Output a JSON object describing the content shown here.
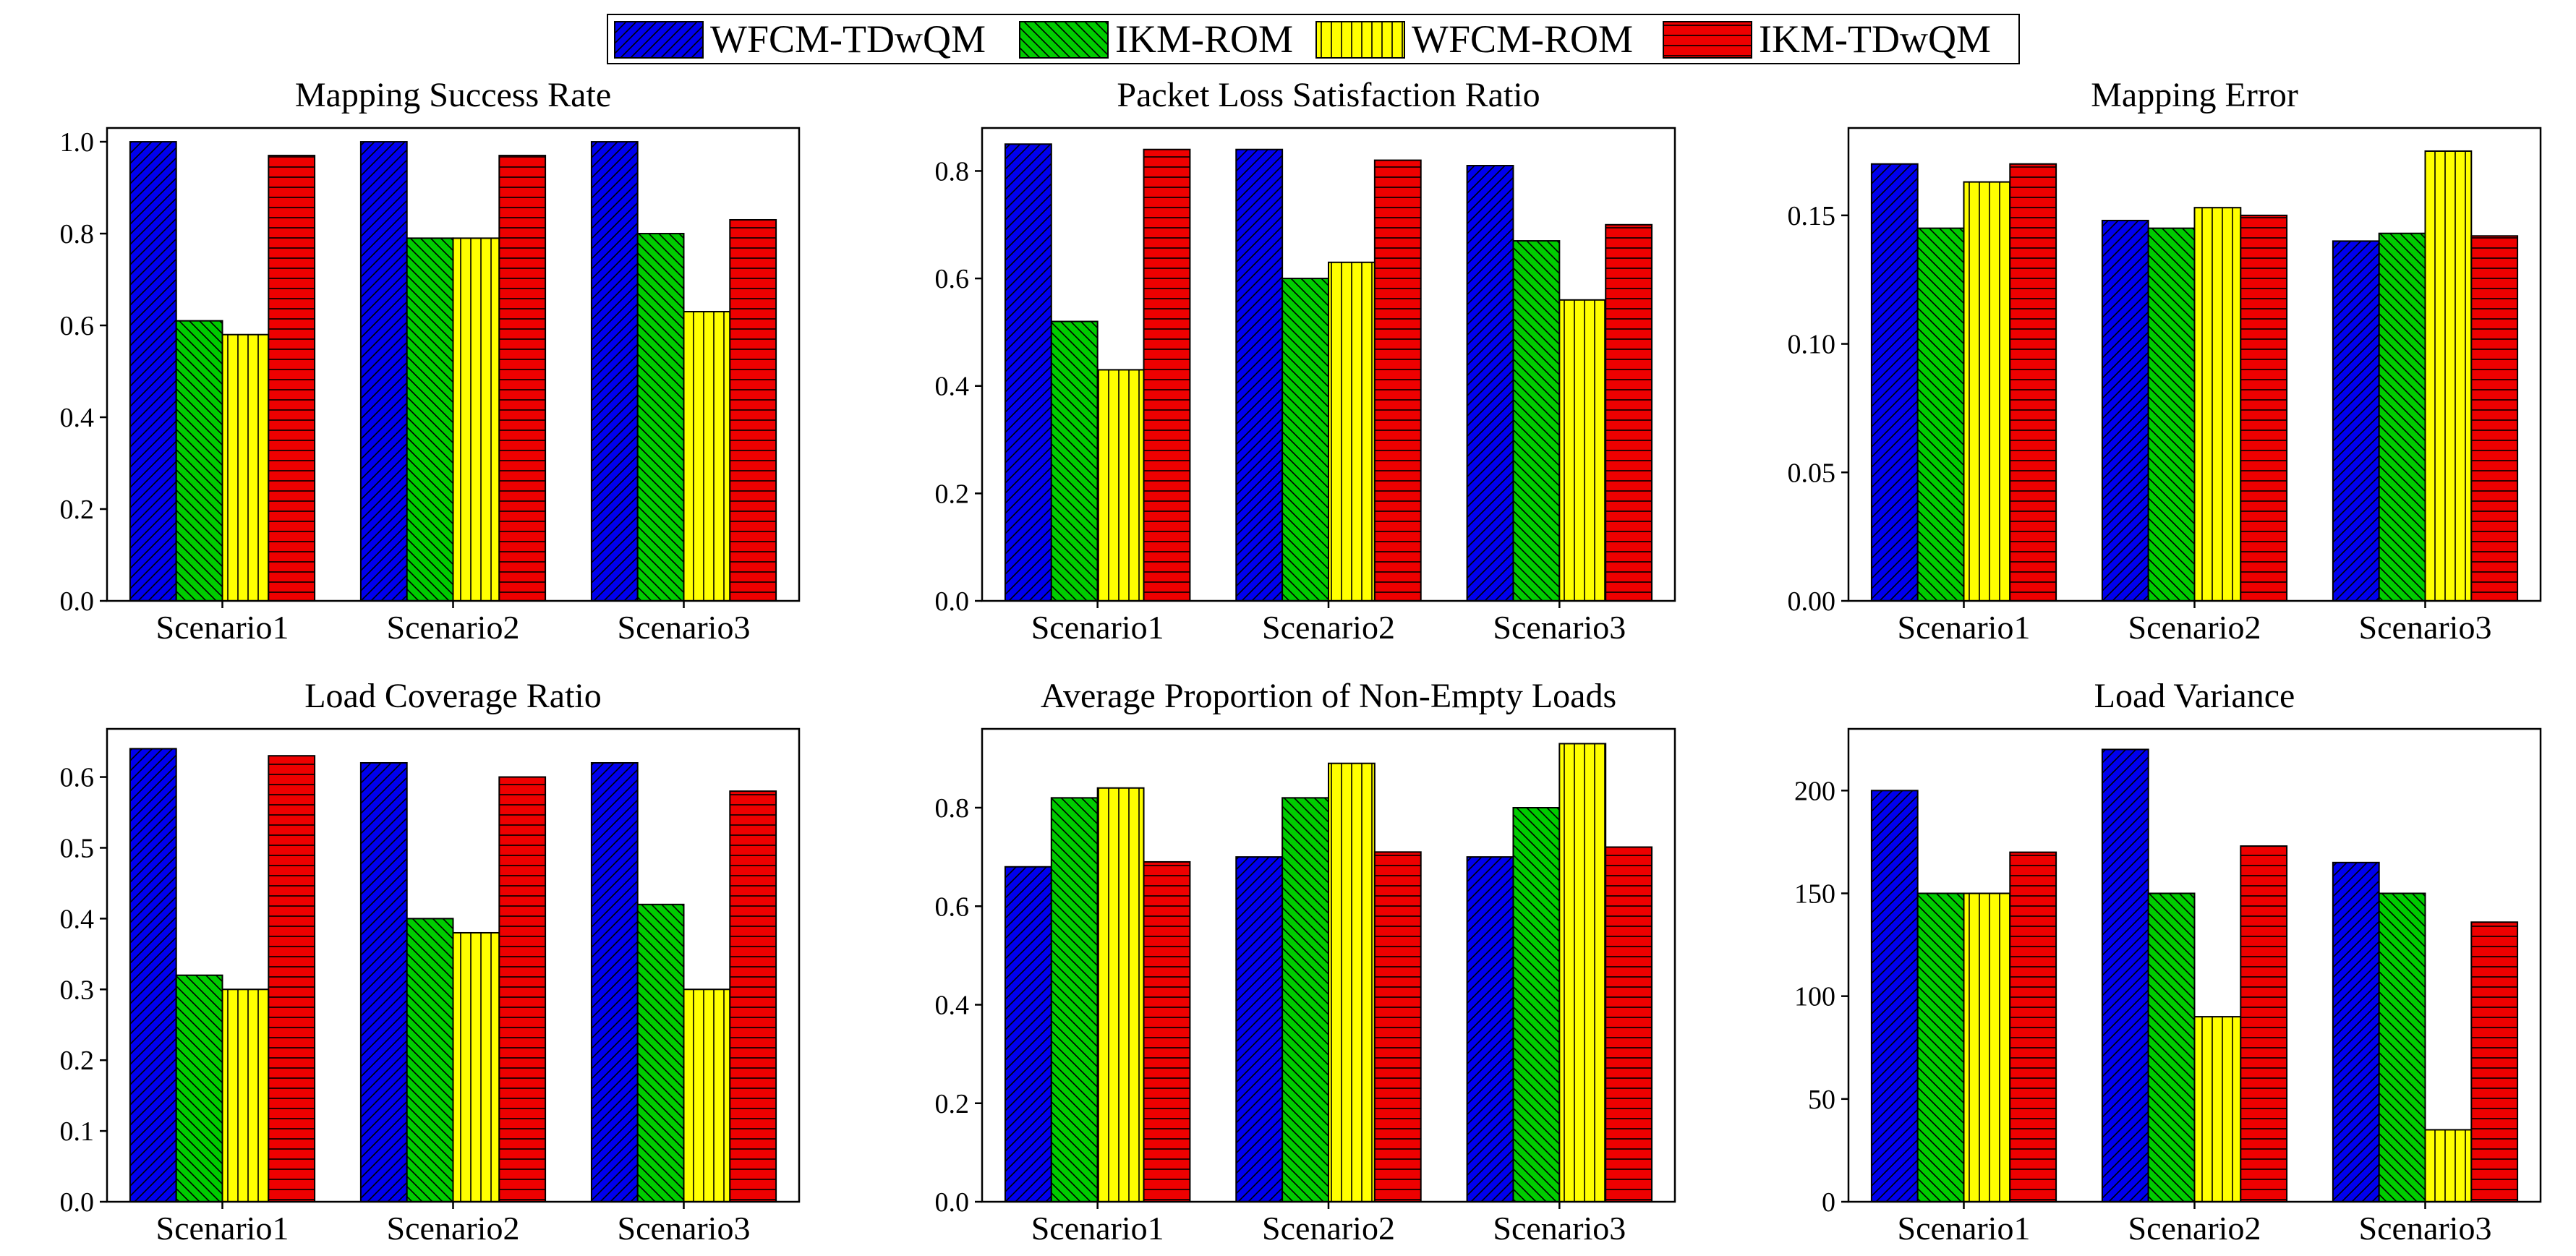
{
  "legend": [
    {
      "name": "WFCM-TDwQM",
      "color": "#0000ee",
      "pattern": "diag"
    },
    {
      "name": "IKM-ROM",
      "color": "#00cc00",
      "pattern": "backdiag"
    },
    {
      "name": "WFCM-ROM",
      "color": "#ffff00",
      "pattern": "vert"
    },
    {
      "name": "IKM-TDwQM",
      "color": "#ee0000",
      "pattern": "horiz"
    }
  ],
  "chart_data": [
    {
      "type": "bar",
      "title": "Mapping Success Rate",
      "categories": [
        "Scenario1",
        "Scenario2",
        "Scenario3"
      ],
      "ylim": [
        0,
        1.03
      ],
      "yticks": [
        "0.0",
        "0.2",
        "0.4",
        "0.6",
        "0.8",
        "1.0"
      ],
      "series": [
        {
          "name": "WFCM-TDwQM",
          "values": [
            1.0,
            1.0,
            1.0
          ]
        },
        {
          "name": "IKM-ROM",
          "values": [
            0.61,
            0.79,
            0.8
          ]
        },
        {
          "name": "WFCM-ROM",
          "values": [
            0.58,
            0.79,
            0.63
          ]
        },
        {
          "name": "IKM-TDwQM",
          "values": [
            0.97,
            0.97,
            0.83
          ]
        }
      ]
    },
    {
      "type": "bar",
      "title": "Packet Loss Satisfaction Ratio",
      "categories": [
        "Scenario1",
        "Scenario2",
        "Scenario3"
      ],
      "ylim": [
        0,
        0.88
      ],
      "yticks": [
        "0.0",
        "0.2",
        "0.4",
        "0.6",
        "0.8"
      ],
      "series": [
        {
          "name": "WFCM-TDwQM",
          "values": [
            0.85,
            0.84,
            0.81
          ]
        },
        {
          "name": "IKM-ROM",
          "values": [
            0.52,
            0.6,
            0.67
          ]
        },
        {
          "name": "WFCM-ROM",
          "values": [
            0.43,
            0.63,
            0.56
          ]
        },
        {
          "name": "IKM-TDwQM",
          "values": [
            0.84,
            0.82,
            0.7
          ]
        }
      ]
    },
    {
      "type": "bar",
      "title": "Mapping Error",
      "categories": [
        "Scenario1",
        "Scenario2",
        "Scenario3"
      ],
      "ylim": [
        0,
        0.184
      ],
      "yticks": [
        "0.00",
        "0.05",
        "0.10",
        "0.15"
      ],
      "series": [
        {
          "name": "WFCM-TDwQM",
          "values": [
            0.17,
            0.148,
            0.14
          ]
        },
        {
          "name": "IKM-ROM",
          "values": [
            0.145,
            0.145,
            0.143
          ]
        },
        {
          "name": "WFCM-ROM",
          "values": [
            0.163,
            0.153,
            0.175
          ]
        },
        {
          "name": "IKM-TDwQM",
          "values": [
            0.17,
            0.15,
            0.142
          ]
        }
      ]
    },
    {
      "type": "bar",
      "title": "Load Coverage Ratio",
      "categories": [
        "Scenario1",
        "Scenario2",
        "Scenario3"
      ],
      "ylim": [
        0,
        0.668
      ],
      "yticks": [
        "0.0",
        "0.1",
        "0.2",
        "0.3",
        "0.4",
        "0.5",
        "0.6"
      ],
      "series": [
        {
          "name": "WFCM-TDwQM",
          "values": [
            0.64,
            0.62,
            0.62
          ]
        },
        {
          "name": "IKM-ROM",
          "values": [
            0.32,
            0.4,
            0.42
          ]
        },
        {
          "name": "WFCM-ROM",
          "values": [
            0.3,
            0.38,
            0.3
          ]
        },
        {
          "name": "IKM-TDwQM",
          "values": [
            0.63,
            0.6,
            0.58
          ]
        }
      ]
    },
    {
      "type": "bar",
      "title": "Average Proportion of Non-Empty Loads",
      "categories": [
        "Scenario1",
        "Scenario2",
        "Scenario3"
      ],
      "ylim": [
        0,
        0.96
      ],
      "yticks": [
        "0.0",
        "0.2",
        "0.4",
        "0.6",
        "0.8"
      ],
      "series": [
        {
          "name": "WFCM-TDwQM",
          "values": [
            0.68,
            0.7,
            0.7
          ]
        },
        {
          "name": "IKM-ROM",
          "values": [
            0.82,
            0.82,
            0.8
          ]
        },
        {
          "name": "WFCM-ROM",
          "values": [
            0.84,
            0.89,
            0.93
          ]
        },
        {
          "name": "IKM-TDwQM",
          "values": [
            0.69,
            0.71,
            0.72
          ]
        }
      ]
    },
    {
      "type": "bar",
      "title": "Load Variance",
      "categories": [
        "Scenario1",
        "Scenario2",
        "Scenario3"
      ],
      "ylim": [
        0,
        230
      ],
      "yticks": [
        "0",
        "50",
        "100",
        "150",
        "200"
      ],
      "series": [
        {
          "name": "WFCM-TDwQM",
          "values": [
            200,
            220,
            165
          ]
        },
        {
          "name": "IKM-ROM",
          "values": [
            150,
            150,
            150
          ]
        },
        {
          "name": "WFCM-ROM",
          "values": [
            150,
            90,
            35
          ]
        },
        {
          "name": "IKM-TDwQM",
          "values": [
            170,
            173,
            136
          ]
        }
      ]
    }
  ]
}
